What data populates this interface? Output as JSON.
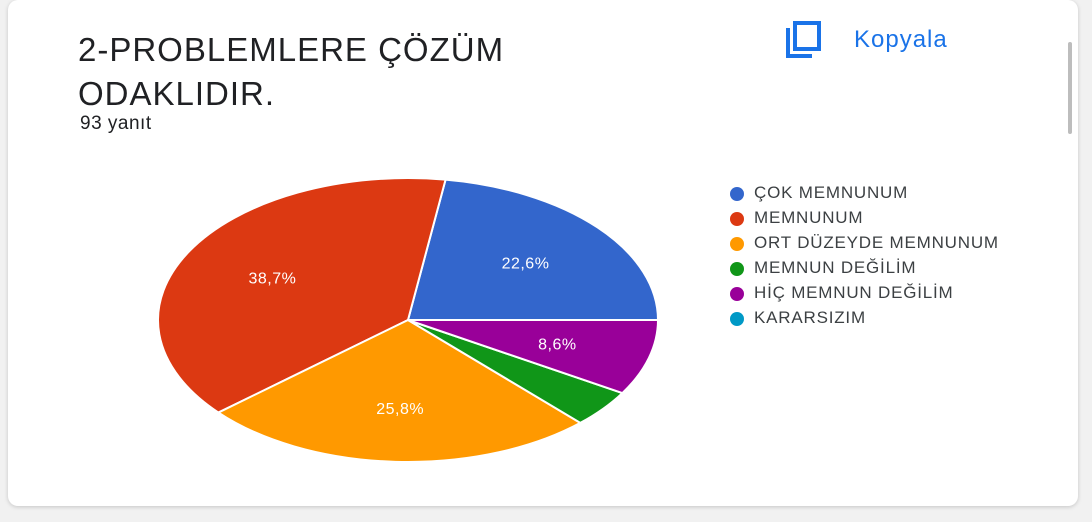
{
  "question": {
    "title": "2-PROBLEMLERE ÇÖZÜM ODAKLIDIR.",
    "response_count": "93 yanıt"
  },
  "actions": {
    "copy_label": "Kopyala",
    "copy_icon": "copy-icon"
  },
  "colors": {
    "accent": "#1a73e8"
  },
  "chart_data": {
    "type": "pie",
    "title": "2-PROBLEMLERE ÇÖZÜM ODAKLIDIR.",
    "categories": [
      "ÇOK MEMNUNUM",
      "MEMNUNUM",
      "ORT DÜZEYDE MEMNUNUM",
      "MEMNUN DEĞİLİM",
      "HİÇ MEMNUN DEĞİLİM",
      "KARARSIZIM"
    ],
    "values": [
      22.6,
      38.7,
      25.8,
      4.3,
      8.6,
      0
    ],
    "data_labels": [
      "22,6%",
      "38,7%",
      "25,8%",
      "",
      "8,6%",
      ""
    ],
    "colors": [
      "#3366cc",
      "#dc3912",
      "#ff9900",
      "#109618",
      "#990099",
      "#0099c6"
    ],
    "legend_position": "right"
  }
}
